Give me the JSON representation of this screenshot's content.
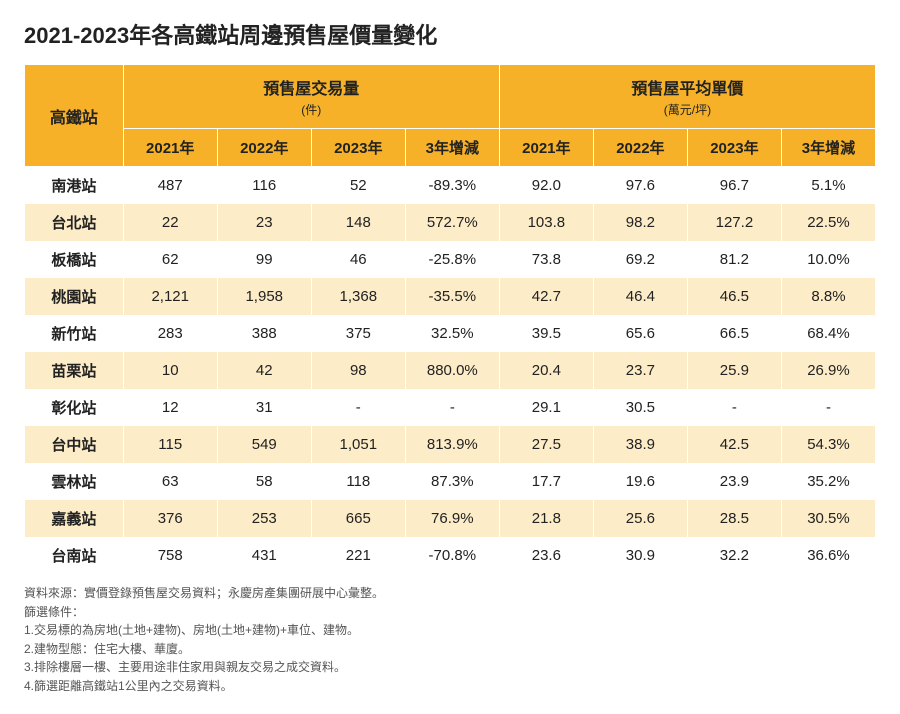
{
  "title": "2021-2023年各高鐵站周邊預售屋價量變化",
  "table": {
    "type": "table",
    "header_bg": "#f6b128",
    "row_even_bg": "#ffffff",
    "row_odd_bg": "#fdecc8",
    "station_header": "高鐵站",
    "groups": [
      {
        "title": "預售屋交易量",
        "unit": "(件)"
      },
      {
        "title": "預售屋平均單價",
        "unit": "(萬元/坪)"
      }
    ],
    "sub_headers": [
      "2021年",
      "2022年",
      "2023年",
      "3年增減",
      "2021年",
      "2022年",
      "2023年",
      "3年增減"
    ],
    "col_widths_pct": [
      11.6,
      11.05,
      11.05,
      11.05,
      11.05,
      11.05,
      11.05,
      11.05,
      11.05
    ],
    "rows": [
      {
        "station": "南港站",
        "cells": [
          "487",
          "116",
          "52",
          "-89.3%",
          "92.0",
          "97.6",
          "96.7",
          "5.1%"
        ]
      },
      {
        "station": "台北站",
        "cells": [
          "22",
          "23",
          "148",
          "572.7%",
          "103.8",
          "98.2",
          "127.2",
          "22.5%"
        ]
      },
      {
        "station": "板橋站",
        "cells": [
          "62",
          "99",
          "46",
          "-25.8%",
          "73.8",
          "69.2",
          "81.2",
          "10.0%"
        ]
      },
      {
        "station": "桃園站",
        "cells": [
          "2,121",
          "1,958",
          "1,368",
          "-35.5%",
          "42.7",
          "46.4",
          "46.5",
          "8.8%"
        ]
      },
      {
        "station": "新竹站",
        "cells": [
          "283",
          "388",
          "375",
          "32.5%",
          "39.5",
          "65.6",
          "66.5",
          "68.4%"
        ]
      },
      {
        "station": "苗栗站",
        "cells": [
          "10",
          "42",
          "98",
          "880.0%",
          "20.4",
          "23.7",
          "25.9",
          "26.9%"
        ]
      },
      {
        "station": "彰化站",
        "cells": [
          "12",
          "31",
          "-",
          "-",
          "29.1",
          "30.5",
          "-",
          "-"
        ]
      },
      {
        "station": "台中站",
        "cells": [
          "115",
          "549",
          "1,051",
          "813.9%",
          "27.5",
          "38.9",
          "42.5",
          "54.3%"
        ]
      },
      {
        "station": "雲林站",
        "cells": [
          "63",
          "58",
          "118",
          "87.3%",
          "17.7",
          "19.6",
          "23.9",
          "35.2%"
        ]
      },
      {
        "station": "嘉義站",
        "cells": [
          "376",
          "253",
          "665",
          "76.9%",
          "21.8",
          "25.6",
          "28.5",
          "30.5%"
        ]
      },
      {
        "station": "台南站",
        "cells": [
          "758",
          "431",
          "221",
          "-70.8%",
          "23.6",
          "30.9",
          "32.2",
          "36.6%"
        ]
      }
    ]
  },
  "footer": {
    "lines": [
      "資料來源：實價登錄預售屋交易資料；永慶房產集團研展中心彙整。",
      "篩選條件：",
      "1.交易標的為房地(土地+建物)、房地(土地+建物)+車位、建物。",
      "2.建物型態：住宅大樓、華廈。",
      "3.排除樓層一樓、主要用途非住家用與親友交易之成交資料。",
      "4.篩選距離高鐵站1公里內之交易資料。"
    ]
  }
}
